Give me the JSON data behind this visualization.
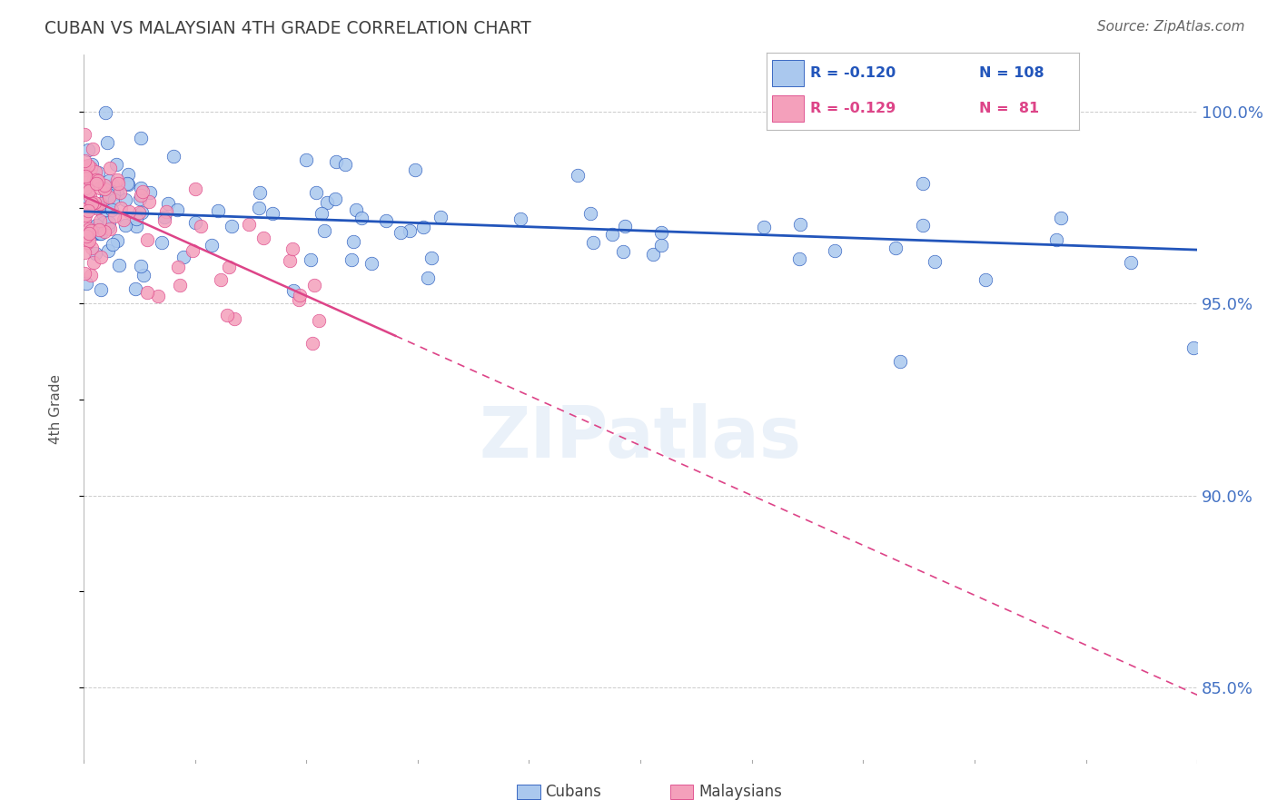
{
  "title": "CUBAN VS MALAYSIAN 4TH GRADE CORRELATION CHART",
  "source": "Source: ZipAtlas.com",
  "ylabel": "4th Grade",
  "ylabel_right_ticks": [
    85.0,
    90.0,
    95.0,
    100.0
  ],
  "blue_color": "#2255bb",
  "pink_color": "#dd4488",
  "blue_scatter_color": "#aac8ee",
  "pink_scatter_color": "#f4a0bb",
  "background_color": "#ffffff",
  "grid_color": "#cccccc",
  "axis_label_color": "#4472c4",
  "title_color": "#404040",
  "xlim": [
    0,
    100
  ],
  "ylim_bottom": 83.0,
  "ylim_top": 101.5,
  "blue_intercept": 97.4,
  "blue_slope": -0.01,
  "pink_intercept": 97.8,
  "pink_slope": -0.13,
  "pink_solid_end": 28.0,
  "n_cubans": 108,
  "n_malaysians": 81,
  "seed": 123
}
